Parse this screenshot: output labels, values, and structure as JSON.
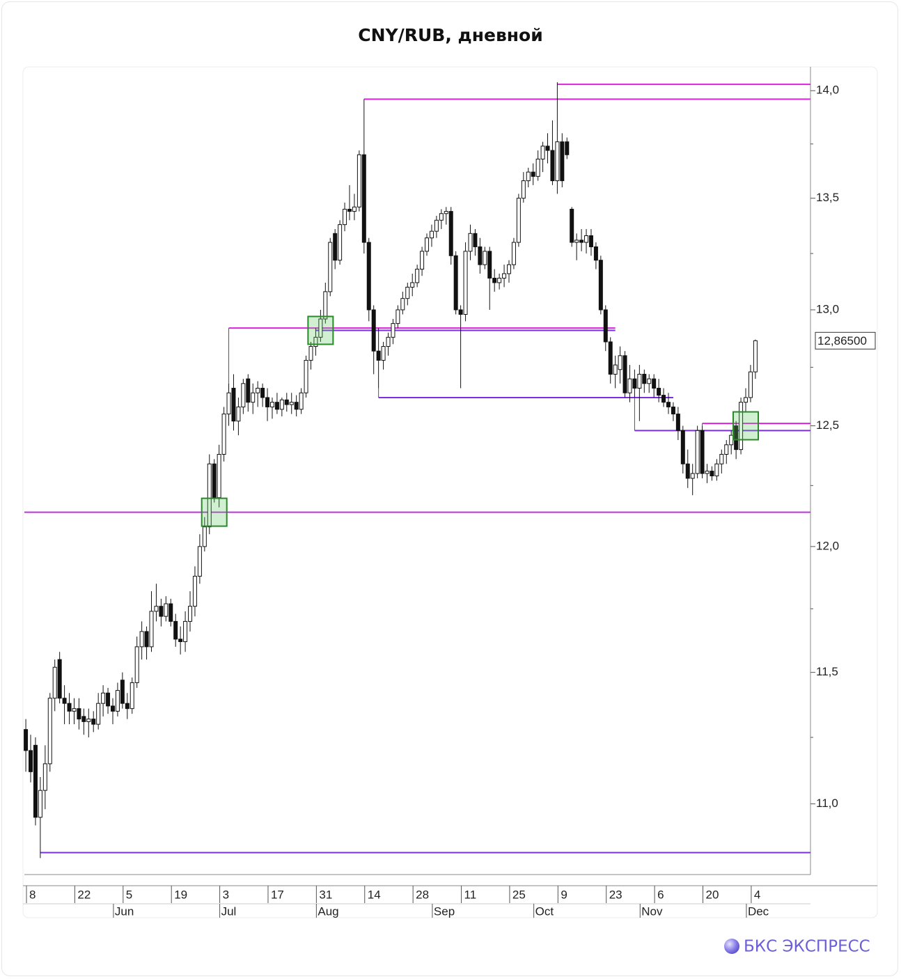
{
  "chart_data": {
    "type": "candlestick",
    "title": "CNY/RUB, дневной",
    "log_scale": true,
    "ylim": [
      10.74,
      14.11
    ],
    "yticks": [
      {
        "value": 11.0,
        "label": "11,0"
      },
      {
        "value": 11.5,
        "label": "11,5"
      },
      {
        "value": 12.0,
        "label": "12,0"
      },
      {
        "value": 12.5,
        "label": "12,5"
      },
      {
        "value": 13.0,
        "label": "13,0"
      },
      {
        "value": 13.5,
        "label": "13,5"
      },
      {
        "value": 14.0,
        "label": "14,0"
      }
    ],
    "minor_yticks": [
      11.25,
      11.75,
      12.25,
      12.75,
      13.25,
      13.75
    ],
    "xlim": [
      -0.3,
      162.4
    ],
    "xticks": [
      {
        "value": 1,
        "label": "8"
      },
      {
        "value": 11,
        "label": "22"
      },
      {
        "value": 21,
        "label": "5"
      },
      {
        "value": 31,
        "label": "19"
      },
      {
        "value": 41,
        "label": "3"
      },
      {
        "value": 51,
        "label": "17"
      },
      {
        "value": 61,
        "label": "31"
      },
      {
        "value": 71,
        "label": "14"
      },
      {
        "value": 81,
        "label": "28"
      },
      {
        "value": 91,
        "label": "11"
      },
      {
        "value": 101,
        "label": "25"
      },
      {
        "value": 111,
        "label": "9"
      },
      {
        "value": 121,
        "label": "23"
      },
      {
        "value": 131,
        "label": "6"
      },
      {
        "value": 141,
        "label": "20"
      },
      {
        "value": 151,
        "label": "4"
      }
    ],
    "month_ticks": [
      {
        "value": 19,
        "label": "Jun"
      },
      {
        "value": 41,
        "label": "Jul"
      },
      {
        "value": 61,
        "label": "Aug"
      },
      {
        "value": 85,
        "label": "Sep"
      },
      {
        "value": 106,
        "label": "Oct"
      },
      {
        "value": 128,
        "label": "Nov"
      },
      {
        "value": 150,
        "label": "Dec"
      }
    ],
    "open": [
      11.28,
      11.2,
      11.22,
      10.95,
      11.05,
      11.15,
      11.4,
      11.55,
      11.4,
      11.38,
      11.35,
      11.36,
      11.33,
      11.31,
      11.32,
      11.3,
      11.38,
      11.42,
      11.37,
      11.35,
      11.47,
      11.38,
      11.36,
      11.46,
      11.6,
      11.66,
      11.6,
      11.74,
      11.76,
      11.72,
      11.77,
      11.7,
      11.63,
      11.62,
      11.7,
      11.76,
      11.88,
      12.0,
      12.08,
      12.34,
      12.2,
      12.38,
      12.55,
      12.66,
      12.52,
      12.58,
      12.7,
      12.6,
      12.64,
      12.66,
      12.62,
      12.58,
      12.6,
      12.57,
      12.61,
      12.59,
      12.6,
      12.57,
      12.64,
      12.78,
      12.84,
      12.88,
      12.96,
      13.08,
      13.34,
      13.22,
      13.38,
      13.45,
      13.44,
      13.46,
      13.7,
      13.3,
      13.0,
      12.82,
      12.78,
      12.84,
      12.88,
      12.94,
      13.0,
      13.05,
      13.1,
      13.12,
      13.18,
      13.26,
      13.32,
      13.35,
      13.4,
      13.43,
      13.44,
      13.24,
      13.0,
      12.98,
      13.26,
      13.34,
      13.28,
      13.2,
      13.26,
      13.14,
      13.12,
      13.14,
      13.16,
      13.2,
      13.3,
      13.5,
      13.58,
      13.62,
      13.6,
      13.68,
      13.74,
      13.72,
      13.58,
      13.76,
      13.76,
      13.45,
      13.3,
      13.31,
      13.3,
      13.33,
      13.28,
      13.22,
      13.0,
      12.86,
      12.72,
      12.74,
      12.8,
      12.64,
      12.7,
      12.66,
      12.72,
      12.68,
      12.7,
      12.66,
      12.63,
      12.6,
      12.58,
      12.55,
      12.48,
      12.34,
      12.28,
      12.3,
      12.48,
      12.3,
      12.31,
      12.29,
      12.34,
      12.38,
      12.42,
      12.5,
      12.4,
      12.6,
      12.62,
      12.73
    ],
    "high": [
      11.32,
      11.26,
      11.25,
      11.1,
      11.22,
      11.42,
      11.55,
      11.58,
      11.45,
      11.42,
      11.4,
      11.4,
      11.36,
      11.36,
      11.35,
      11.42,
      11.45,
      11.44,
      11.4,
      11.46,
      11.5,
      11.42,
      11.48,
      11.64,
      11.7,
      11.68,
      11.82,
      11.85,
      11.79,
      11.8,
      11.79,
      11.73,
      11.68,
      11.74,
      11.82,
      11.92,
      12.05,
      12.12,
      12.38,
      12.36,
      12.42,
      12.58,
      12.68,
      12.72,
      12.62,
      12.7,
      12.72,
      12.68,
      12.69,
      12.68,
      12.66,
      12.62,
      12.64,
      12.62,
      12.64,
      12.64,
      12.63,
      12.66,
      12.8,
      12.86,
      12.92,
      13.0,
      13.12,
      13.32,
      13.36,
      13.4,
      13.48,
      13.56,
      13.52,
      13.72,
      13.96,
      13.32,
      13.02,
      12.92,
      12.86,
      12.9,
      12.96,
      13.02,
      13.08,
      13.12,
      13.16,
      13.2,
      13.28,
      13.34,
      13.38,
      13.42,
      13.45,
      13.46,
      13.46,
      13.26,
      13.02,
      13.3,
      13.38,
      13.36,
      13.32,
      13.28,
      13.28,
      13.18,
      13.16,
      13.2,
      13.22,
      13.32,
      13.52,
      13.62,
      13.64,
      13.66,
      13.72,
      13.76,
      13.8,
      13.86,
      14.04,
      13.8,
      13.78,
      13.46,
      13.34,
      13.36,
      13.36,
      13.36,
      13.3,
      13.24,
      13.02,
      12.88,
      12.8,
      12.84,
      12.82,
      12.76,
      12.74,
      12.76,
      12.74,
      12.72,
      12.72,
      12.7,
      12.66,
      12.64,
      12.6,
      12.58,
      12.5,
      12.4,
      12.34,
      12.5,
      12.5,
      12.34,
      12.33,
      12.36,
      12.4,
      12.44,
      12.48,
      12.52,
      12.62,
      12.66,
      12.76,
      12.87
    ],
    "low": [
      11.12,
      11.08,
      10.92,
      10.8,
      10.98,
      11.12,
      11.35,
      11.38,
      11.3,
      11.3,
      11.3,
      11.28,
      11.26,
      11.25,
      11.27,
      11.28,
      11.33,
      11.34,
      11.3,
      11.33,
      11.36,
      11.32,
      11.34,
      11.44,
      11.55,
      11.55,
      11.58,
      11.7,
      11.68,
      11.7,
      11.68,
      11.6,
      11.57,
      11.58,
      11.66,
      11.72,
      11.85,
      11.98,
      12.05,
      12.18,
      12.16,
      12.35,
      12.5,
      12.48,
      12.46,
      12.55,
      12.56,
      12.55,
      12.58,
      12.58,
      12.52,
      12.53,
      12.55,
      12.54,
      12.56,
      12.55,
      12.54,
      12.55,
      12.62,
      12.74,
      12.8,
      12.86,
      12.94,
      13.06,
      13.18,
      13.2,
      13.35,
      13.4,
      13.4,
      13.44,
      13.25,
      12.95,
      12.72,
      12.66,
      12.74,
      12.8,
      12.85,
      12.92,
      12.98,
      13.02,
      13.06,
      13.1,
      13.15,
      13.24,
      13.28,
      13.32,
      13.36,
      13.38,
      13.2,
      12.98,
      12.66,
      12.95,
      13.22,
      13.24,
      13.16,
      13.18,
      13.0,
      13.08,
      13.09,
      13.1,
      13.12,
      13.18,
      13.28,
      13.48,
      13.55,
      13.56,
      13.58,
      13.62,
      13.66,
      13.56,
      13.52,
      13.55,
      13.68,
      13.28,
      13.22,
      13.26,
      13.25,
      13.24,
      13.18,
      12.98,
      12.82,
      12.68,
      12.66,
      12.68,
      12.62,
      12.6,
      12.62,
      12.52,
      12.64,
      12.64,
      12.62,
      12.6,
      12.58,
      12.55,
      12.52,
      12.44,
      12.3,
      12.24,
      12.21,
      12.28,
      12.28,
      12.26,
      12.27,
      12.27,
      12.3,
      12.34,
      12.38,
      12.36,
      12.38,
      12.56,
      12.6,
      12.7
    ],
    "close": [
      11.2,
      11.12,
      10.95,
      11.05,
      11.15,
      11.4,
      11.52,
      11.4,
      11.38,
      11.35,
      11.36,
      11.32,
      11.31,
      11.32,
      11.3,
      11.38,
      11.42,
      11.37,
      11.35,
      11.43,
      11.38,
      11.36,
      11.46,
      11.6,
      11.66,
      11.6,
      11.74,
      11.76,
      11.72,
      11.77,
      11.7,
      11.63,
      11.62,
      11.7,
      11.76,
      11.88,
      12.0,
      12.08,
      12.34,
      12.2,
      12.38,
      12.55,
      12.64,
      12.52,
      12.58,
      12.68,
      12.6,
      12.64,
      12.66,
      12.62,
      12.58,
      12.6,
      12.57,
      12.61,
      12.59,
      12.6,
      12.57,
      12.64,
      12.78,
      12.84,
      12.88,
      12.96,
      13.08,
      13.3,
      13.22,
      13.38,
      13.45,
      13.44,
      13.46,
      13.7,
      13.3,
      13.0,
      12.82,
      12.78,
      12.84,
      12.88,
      12.94,
      13.0,
      13.05,
      13.1,
      13.12,
      13.18,
      13.26,
      13.32,
      13.35,
      13.4,
      13.43,
      13.44,
      13.24,
      13.0,
      12.98,
      13.26,
      13.34,
      13.28,
      13.2,
      13.26,
      13.14,
      13.12,
      13.14,
      13.16,
      13.2,
      13.3,
      13.5,
      13.58,
      13.62,
      13.6,
      13.68,
      13.74,
      13.72,
      13.58,
      13.76,
      13.58,
      13.7,
      13.3,
      13.31,
      13.3,
      13.33,
      13.28,
      13.22,
      13.0,
      12.86,
      12.72,
      12.76,
      12.8,
      12.64,
      12.7,
      12.66,
      12.72,
      12.68,
      12.7,
      12.66,
      12.63,
      12.6,
      12.58,
      12.55,
      12.48,
      12.34,
      12.28,
      12.3,
      12.48,
      12.3,
      12.31,
      12.29,
      12.34,
      12.38,
      12.42,
      12.46,
      12.4,
      12.6,
      12.62,
      12.73,
      12.865
    ],
    "levels": [
      {
        "value": 14.03,
        "from": 110,
        "to": null,
        "color": "#e020e0"
      },
      {
        "value": 13.96,
        "from": 70,
        "to": null,
        "color": "#e020e0"
      },
      {
        "value": 12.92,
        "from": 42,
        "to": 122,
        "color": "#e020e0"
      },
      {
        "value": 12.91,
        "from": 60,
        "to": 122,
        "color": "#7a2ee0"
      },
      {
        "value": 12.62,
        "from": 73,
        "to": 134,
        "color": "#7a2ee0"
      },
      {
        "value": 12.48,
        "from": 126,
        "to": null,
        "color": "#7a2ee0"
      },
      {
        "value": 12.51,
        "from": 140,
        "to": null,
        "color": "#e020e0"
      },
      {
        "value": 12.14,
        "from": null,
        "to": null,
        "color": "#c030e0"
      },
      {
        "value": 10.82,
        "from": 3,
        "to": null,
        "color": "#7a2ee0"
      }
    ],
    "highlights": [
      {
        "x": 39,
        "value": 12.14
      },
      {
        "x": 61,
        "value": 12.91
      },
      {
        "x": 149,
        "value": 12.5
      }
    ],
    "last_price": {
      "value": 12.865,
      "label": "12,86500"
    }
  },
  "brand": "БКС ЭКСПРЕСС"
}
